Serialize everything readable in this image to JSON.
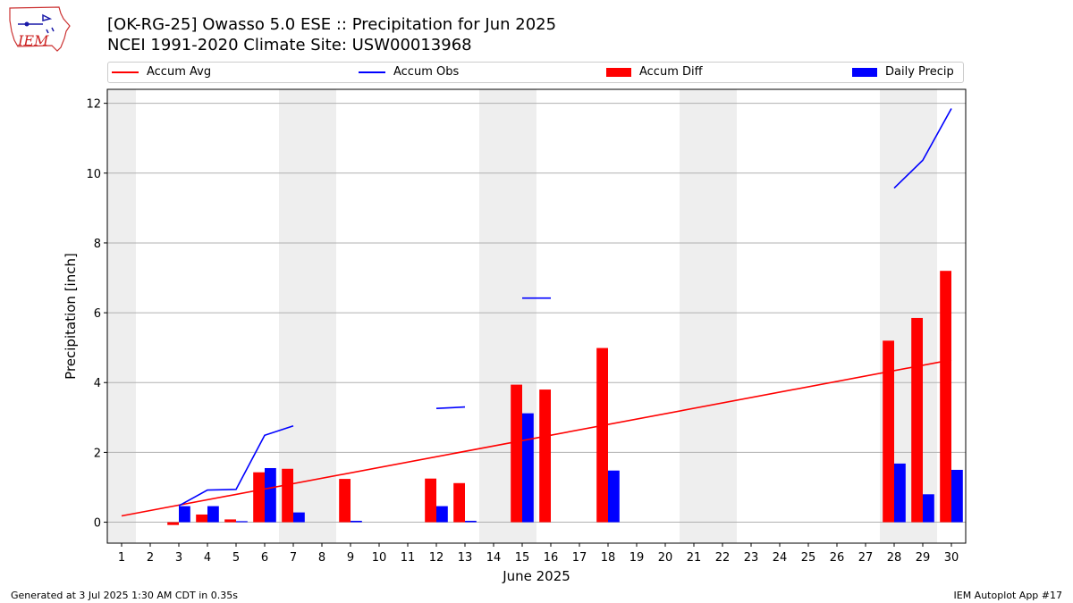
{
  "header": {
    "title_line1": "[OK-RG-25] Owasso 5.0 ESE :: Precipitation for Jun 2025",
    "title_line2": "NCEI 1991-2020 Climate Site: USW00013968",
    "logo_text": "IEM"
  },
  "footer": {
    "left": "Generated at 3 Jul 2025 1:30 AM CDT in 0.35s",
    "right": "IEM Autoplot App #17"
  },
  "colors": {
    "accum_avg": "#ff0000",
    "accum_obs": "#0000ff",
    "accum_diff": "#ff0000",
    "daily_precip": "#0000ff",
    "weekend_shade": "#eeeeee"
  },
  "chart_data": {
    "type": "bar",
    "xlabel": "June 2025",
    "ylabel": "Precipitation [inch]",
    "xlim": [
      0.5,
      30.5
    ],
    "ylim": [
      -0.6,
      12.4
    ],
    "yticks": [
      0,
      2,
      4,
      6,
      8,
      10,
      12
    ],
    "categories": [
      "1",
      "2",
      "3",
      "4",
      "5",
      "6",
      "7",
      "8",
      "9",
      "10",
      "11",
      "12",
      "13",
      "14",
      "15",
      "16",
      "17",
      "18",
      "19",
      "20",
      "21",
      "22",
      "23",
      "24",
      "25",
      "26",
      "27",
      "28",
      "29",
      "30"
    ],
    "grid": "horizontal",
    "legend_placement": "top",
    "legend": [
      {
        "label": "Accum Avg",
        "kind": "line",
        "color": "#ff0000"
      },
      {
        "label": "Accum Obs",
        "kind": "line",
        "color": "#0000ff"
      },
      {
        "label": "Accum Diff",
        "kind": "bar",
        "color": "#ff0000"
      },
      {
        "label": "Daily Precip",
        "kind": "bar",
        "color": "#0000ff"
      }
    ],
    "weekend_shading": [
      [
        0.5,
        1.5
      ],
      [
        6.5,
        8.5
      ],
      [
        13.5,
        15.5
      ],
      [
        20.5,
        22.5
      ],
      [
        27.5,
        29.5
      ]
    ],
    "series": [
      {
        "name": "Accum Avg",
        "type": "line",
        "x": [
          1,
          30
        ],
        "values": [
          0.18,
          4.65
        ]
      },
      {
        "name": "Accum Obs",
        "type": "line",
        "segments": [
          {
            "x": [
              3,
              4,
              5,
              6,
              7
            ],
            "values": [
              0.47,
              0.92,
              0.94,
              2.49,
              2.76
            ]
          },
          {
            "x": [
              12,
              13
            ],
            "values": [
              3.26,
              3.3
            ]
          },
          {
            "x": [
              15,
              16
            ],
            "values": [
              6.42,
              6.42
            ]
          },
          {
            "x": [
              28,
              29,
              30
            ],
            "values": [
              9.57,
              10.37,
              11.85
            ]
          }
        ]
      },
      {
        "name": "Accum Diff",
        "type": "bar",
        "x": [
          3,
          4,
          5,
          6,
          7,
          9,
          12,
          13,
          15,
          16,
          18,
          28,
          29,
          30
        ],
        "values": [
          -0.08,
          0.22,
          0.08,
          1.43,
          1.53,
          1.24,
          1.25,
          1.12,
          3.94,
          3.8,
          4.99,
          5.2,
          5.85,
          7.2
        ]
      },
      {
        "name": "Daily Precip",
        "type": "bar",
        "x": [
          3,
          4,
          5,
          6,
          7,
          9,
          12,
          13,
          15,
          18,
          28,
          29,
          30
        ],
        "values": [
          0.46,
          0.46,
          0.03,
          1.55,
          0.28,
          0.04,
          0.46,
          0.04,
          3.12,
          1.48,
          1.68,
          0.8,
          1.5
        ]
      }
    ]
  }
}
